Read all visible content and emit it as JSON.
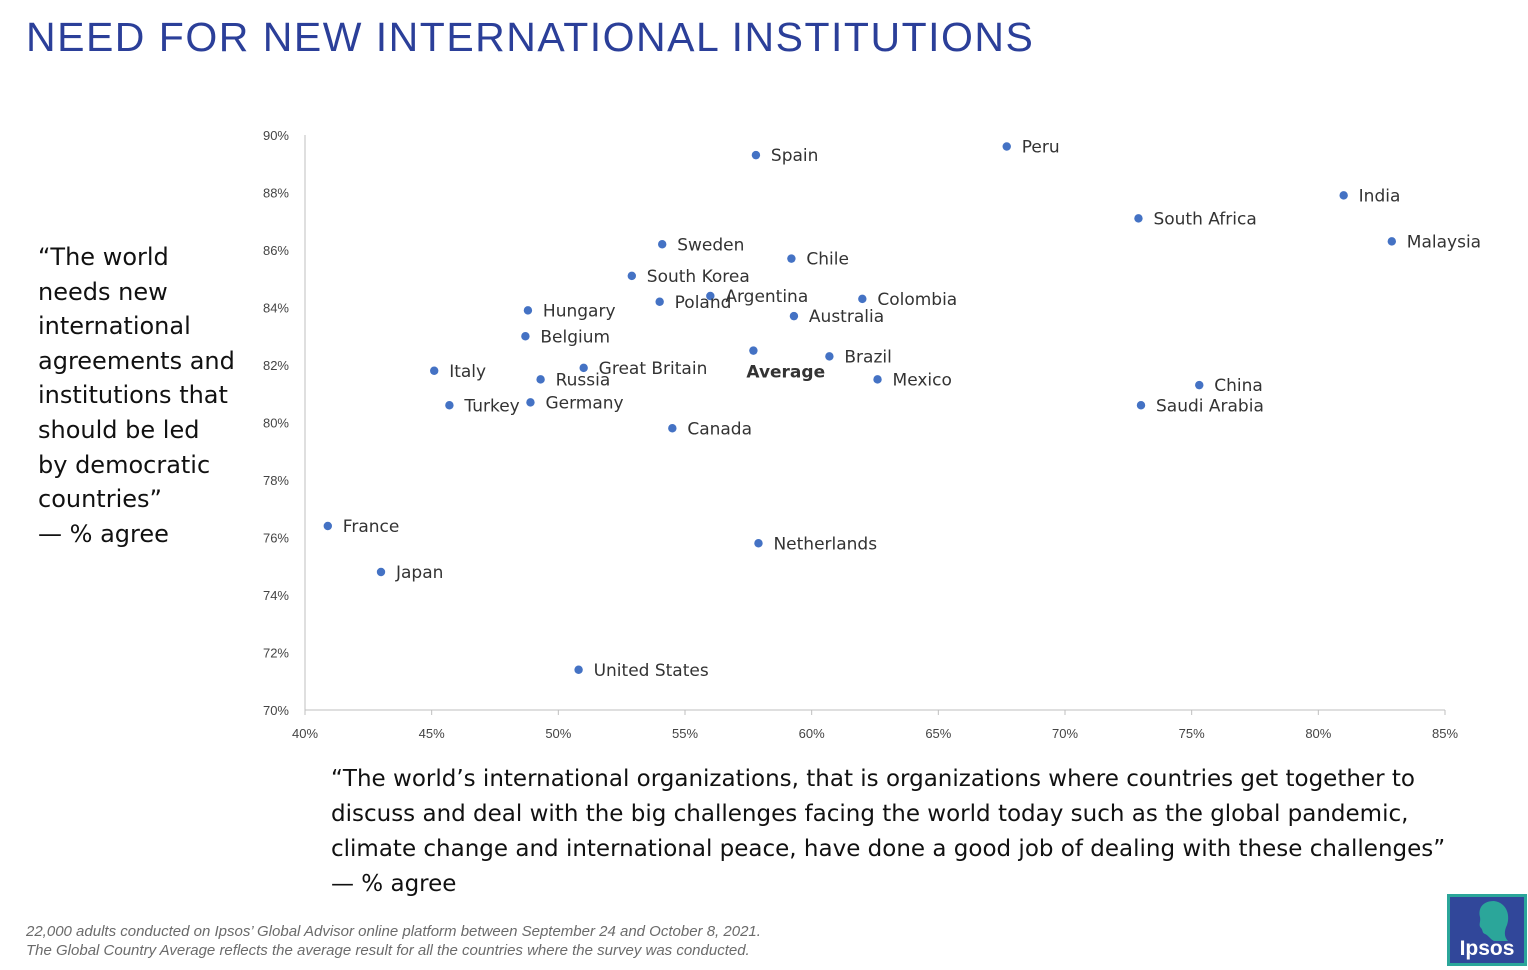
{
  "title": "NEED FOR NEW INTERNATIONAL INSTITUTIONS",
  "y_question_lines": [
    "“The world",
    "needs new",
    "international",
    "agreements and",
    "institutions that",
    "should be led",
    "by democratic",
    "countries”",
    "— % agree"
  ],
  "x_question_lines": [
    "“The world’s international organizations, that is organizations where countries get together to",
    "discuss and deal with the big challenges facing the world today such as the global pandemic,",
    "climate change and international peace, have done a good job of dealing with these challenges”",
    "— % agree"
  ],
  "footnote_lines": [
    "22,000 adults conducted on Ipsos’ Global Advisor online platform between September 24 and October 8, 2021.",
    "The Global Country Average reflects the average result for all the countries where the survey was conducted."
  ],
  "logo_text": "Ipsos",
  "colors": {
    "title": "#2b3f99",
    "point": "#4472c4",
    "logo_outer": "#2ba69a",
    "logo_inner": "#31479a"
  },
  "chart_data": {
    "type": "scatter",
    "title": "",
    "xlabel": "“The world’s international organizations ... have done a good job of dealing with these challenges” — % agree",
    "ylabel": "“The world needs new international agreements and institutions that should be led by democratic countries” — % agree",
    "xlim": [
      40,
      85
    ],
    "ylim": [
      70,
      90
    ],
    "x_ticks": [
      40,
      45,
      50,
      55,
      60,
      65,
      70,
      75,
      80,
      85
    ],
    "y_ticks": [
      70,
      72,
      74,
      76,
      78,
      80,
      82,
      84,
      86,
      88,
      90
    ],
    "x_tick_labels": [
      "40%",
      "45%",
      "50%",
      "55%",
      "60%",
      "65%",
      "70%",
      "75%",
      "80%",
      "85%"
    ],
    "y_tick_labels": [
      "70%",
      "72%",
      "74%",
      "76%",
      "78%",
      "80%",
      "82%",
      "84%",
      "86%",
      "88%",
      "90%"
    ],
    "points": [
      {
        "label": "Spain",
        "x": 57.8,
        "y": 89.3
      },
      {
        "label": "Peru",
        "x": 67.7,
        "y": 89.6
      },
      {
        "label": "India",
        "x": 81.0,
        "y": 87.9
      },
      {
        "label": "South Africa",
        "x": 72.9,
        "y": 87.1
      },
      {
        "label": "Malaysia",
        "x": 82.9,
        "y": 86.3
      },
      {
        "label": "Sweden",
        "x": 54.1,
        "y": 86.2
      },
      {
        "label": "Chile",
        "x": 59.2,
        "y": 85.7
      },
      {
        "label": "South Korea",
        "x": 52.9,
        "y": 85.1
      },
      {
        "label": "Argentina",
        "x": 56.0,
        "y": 84.4
      },
      {
        "label": "Poland",
        "x": 54.0,
        "y": 84.2
      },
      {
        "label": "Colombia",
        "x": 62.0,
        "y": 84.3
      },
      {
        "label": "Hungary",
        "x": 48.8,
        "y": 83.9
      },
      {
        "label": "Australia",
        "x": 59.3,
        "y": 83.7
      },
      {
        "label": "Belgium",
        "x": 48.7,
        "y": 83.0
      },
      {
        "label": "Average",
        "x": 57.7,
        "y": 82.5,
        "bold": true
      },
      {
        "label": "Brazil",
        "x": 60.7,
        "y": 82.3
      },
      {
        "label": "Great Britain",
        "x": 51.0,
        "y": 81.9
      },
      {
        "label": "Italy",
        "x": 45.1,
        "y": 81.8
      },
      {
        "label": "Russia",
        "x": 49.3,
        "y": 81.5
      },
      {
        "label": "Mexico",
        "x": 62.6,
        "y": 81.5
      },
      {
        "label": "China",
        "x": 75.3,
        "y": 81.3
      },
      {
        "label": "Turkey",
        "x": 45.7,
        "y": 80.6
      },
      {
        "label": "Germany",
        "x": 48.9,
        "y": 80.7
      },
      {
        "label": "Saudi Arabia",
        "x": 73.0,
        "y": 80.6
      },
      {
        "label": "Canada",
        "x": 54.5,
        "y": 79.8
      },
      {
        "label": "France",
        "x": 40.9,
        "y": 76.4
      },
      {
        "label": "Netherlands",
        "x": 57.9,
        "y": 75.8
      },
      {
        "label": "Japan",
        "x": 43.0,
        "y": 74.8
      },
      {
        "label": "United States",
        "x": 50.8,
        "y": 71.4
      }
    ]
  }
}
